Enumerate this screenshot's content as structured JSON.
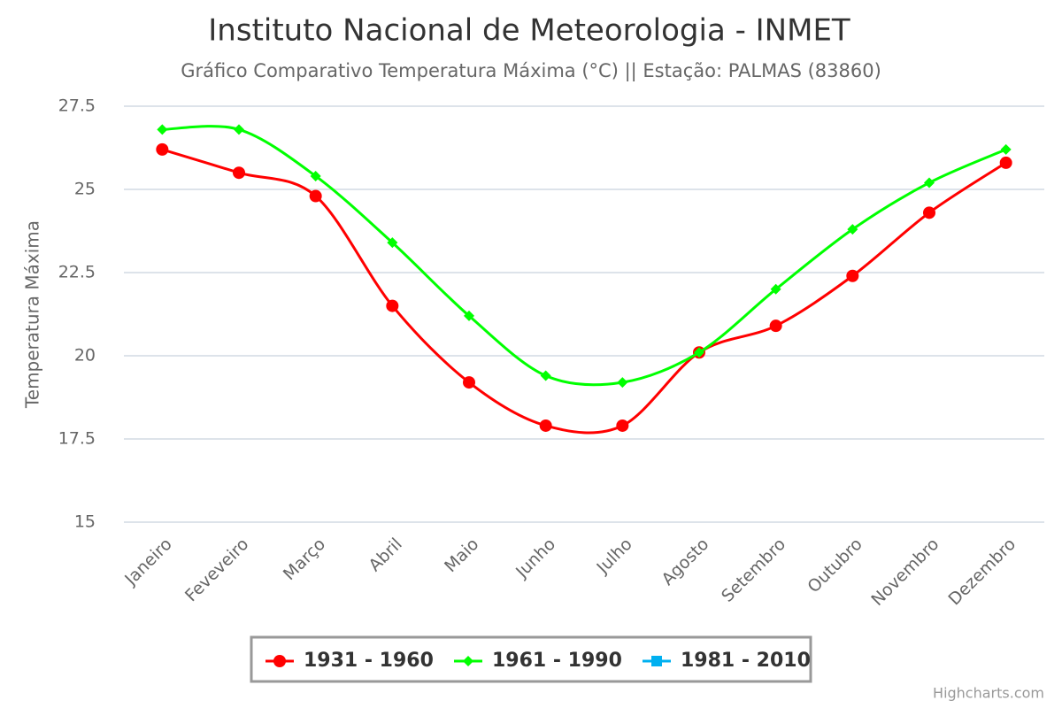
{
  "chart_data": {
    "type": "line",
    "title": "Instituto Nacional de Meteorologia - INMET",
    "subtitle": "Gráfico Comparativo Temperatura Máxima (°C) || Estação: PALMAS (83860)",
    "y_axis_label": "Temperatura Máxima",
    "credits": "Highcharts.com",
    "categories": [
      "Janeiro",
      "Feveveiro",
      "Março",
      "Abril",
      "Maio",
      "Junho",
      "Julho",
      "Agosto",
      "Setembro",
      "Outubro",
      "Novembro",
      "Dezembro"
    ],
    "series": [
      {
        "name": "1931 - 1960",
        "color": "#ff0000",
        "marker": "circle",
        "values": [
          26.2,
          25.5,
          24.8,
          21.5,
          19.2,
          17.9,
          17.9,
          20.1,
          20.9,
          22.4,
          24.3,
          25.8
        ]
      },
      {
        "name": "1961 - 1990",
        "color": "#00ff00",
        "marker": "diamond",
        "values": [
          26.8,
          26.8,
          25.4,
          23.4,
          21.2,
          19.4,
          19.2,
          20.1,
          22.0,
          23.8,
          25.2,
          26.2
        ]
      },
      {
        "name": "1981 - 2010",
        "color": "#00b0f0",
        "marker": "square",
        "values": [
          null,
          null,
          null,
          null,
          null,
          null,
          null,
          null,
          null,
          null,
          null,
          null
        ]
      }
    ],
    "ylim": [
      15,
      27.5
    ],
    "yticks": [
      15,
      17.5,
      20,
      22.5,
      25,
      27.5
    ],
    "grid": true,
    "legend": "bottom"
  }
}
